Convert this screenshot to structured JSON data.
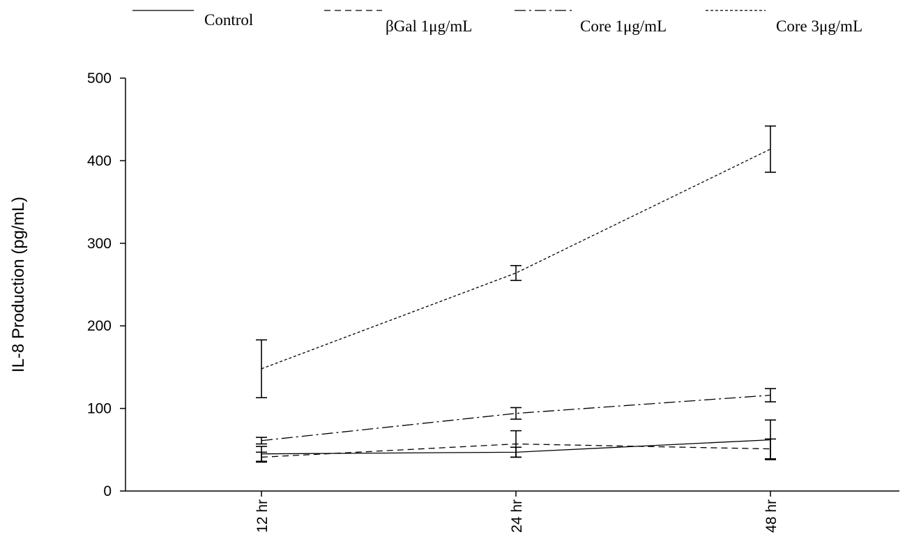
{
  "chart_data": {
    "type": "line",
    "xlabel": "",
    "ylabel": "IL-8 Production (pg/mL)",
    "categories": [
      "12 hr",
      "24 hr",
      "48 hr"
    ],
    "ylim": [
      0,
      500
    ],
    "yticks": [
      "0",
      "100",
      "200",
      "300",
      "400",
      "500"
    ],
    "grid": false,
    "legend_position": "top",
    "series": [
      {
        "name": "Control",
        "dash": "solid",
        "values": [
          45,
          47,
          62
        ],
        "errors": [
          9,
          6,
          24
        ]
      },
      {
        "name": "βGal 1μg/mL",
        "dash": "dashed",
        "values": [
          41,
          57,
          51
        ],
        "errors": [
          6,
          16,
          12
        ]
      },
      {
        "name": "Core 1μg/mL",
        "dash": "dashdot",
        "values": [
          61,
          94,
          116
        ],
        "errors": [
          4,
          7,
          8
        ]
      },
      {
        "name": "Core 3μg/mL",
        "dash": "dotted",
        "values": [
          148,
          264,
          414
        ],
        "errors": [
          35,
          9,
          28
        ]
      }
    ]
  }
}
